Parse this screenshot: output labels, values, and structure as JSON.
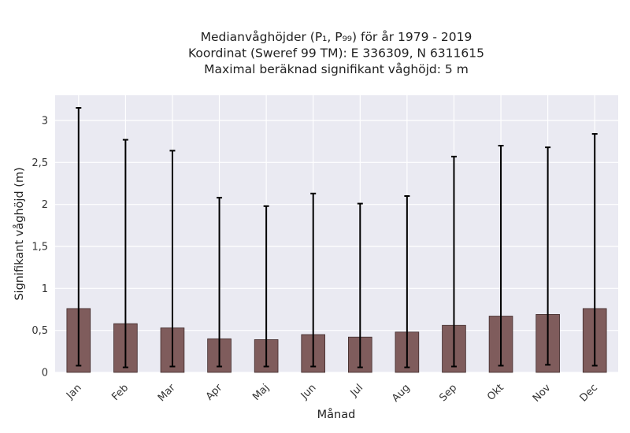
{
  "chart_data": {
    "type": "bar",
    "title_lines": [
      "Medianvåghöjder (P₁, P₉₉) för år 1979 - 2019",
      "Koordinat (Sweref 99 TM): E 336309, N 6311615",
      "Maximal beräknad signifikant våghöjd: 5 m"
    ],
    "xlabel": "Månad",
    "ylabel": "Signifikant våghöjd (m)",
    "categories": [
      "Jan",
      "Feb",
      "Mar",
      "Apr",
      "Maj",
      "Jun",
      "Jul",
      "Aug",
      "Sep",
      "Okt",
      "Nov",
      "Dec"
    ],
    "series": [
      {
        "values": [
          0.76,
          0.58,
          0.53,
          0.4,
          0.39,
          0.45,
          0.42,
          0.48,
          0.56,
          0.67,
          0.69,
          0.76
        ],
        "p1": [
          0.08,
          0.06,
          0.07,
          0.07,
          0.07,
          0.07,
          0.06,
          0.06,
          0.07,
          0.08,
          0.09,
          0.08
        ],
        "p99": [
          3.15,
          2.77,
          2.64,
          2.08,
          1.98,
          2.13,
          2.01,
          2.1,
          2.57,
          2.7,
          2.68,
          2.84
        ]
      }
    ],
    "ylim": [
      0,
      3.3
    ],
    "yticks": [
      0,
      0.5,
      1,
      1.5,
      2,
      2.5,
      3
    ],
    "ytick_labels": [
      "0",
      "0,5",
      "1",
      "1,5",
      "2",
      "2,5",
      "3"
    ],
    "grid": true,
    "colors": {
      "bar": "#7f5c5c",
      "bar_edge": "#3f2a2a",
      "error": "#000000",
      "plot_bg": "#eaeaf2",
      "grid": "#ffffff"
    }
  }
}
